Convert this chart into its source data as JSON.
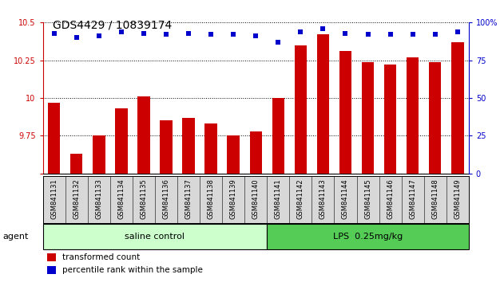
{
  "title": "GDS4429 / 10839174",
  "samples": [
    "GSM841131",
    "GSM841132",
    "GSM841133",
    "GSM841134",
    "GSM841135",
    "GSM841136",
    "GSM841137",
    "GSM841138",
    "GSM841139",
    "GSM841140",
    "GSM841141",
    "GSM841142",
    "GSM841143",
    "GSM841144",
    "GSM841145",
    "GSM841146",
    "GSM841147",
    "GSM841148",
    "GSM841149"
  ],
  "transformed_count": [
    9.97,
    9.63,
    9.75,
    9.93,
    10.01,
    9.85,
    9.87,
    9.83,
    9.75,
    9.78,
    10.0,
    10.35,
    10.42,
    10.31,
    10.24,
    10.22,
    10.27,
    10.24,
    10.37
  ],
  "percentile_rank": [
    93,
    90,
    91,
    94,
    93,
    92,
    93,
    92,
    92,
    91,
    87,
    94,
    96,
    93,
    92,
    92,
    92,
    92,
    94
  ],
  "group1_label": "saline control",
  "group2_label": "LPS  0.25mg/kg",
  "group1_count": 10,
  "group2_count": 9,
  "bar_color": "#cc0000",
  "dot_color": "#0000cc",
  "group1_bg": "#ccffcc",
  "group2_bg": "#55cc55",
  "ylim_left": [
    9.5,
    10.5
  ],
  "ylim_right": [
    0,
    100
  ],
  "yticks_left": [
    9.75,
    10.0,
    10.25
  ],
  "yticks_left_all": [
    9.5,
    9.75,
    10.0,
    10.25,
    10.5
  ],
  "yticks_right": [
    0,
    25,
    50,
    75,
    100
  ],
  "agent_label": "agent",
  "legend_bar_label": "transformed count",
  "legend_dot_label": "percentile rank within the sample",
  "bar_width": 0.55,
  "title_fontsize": 10,
  "tick_fontsize": 7,
  "label_fontsize": 8
}
